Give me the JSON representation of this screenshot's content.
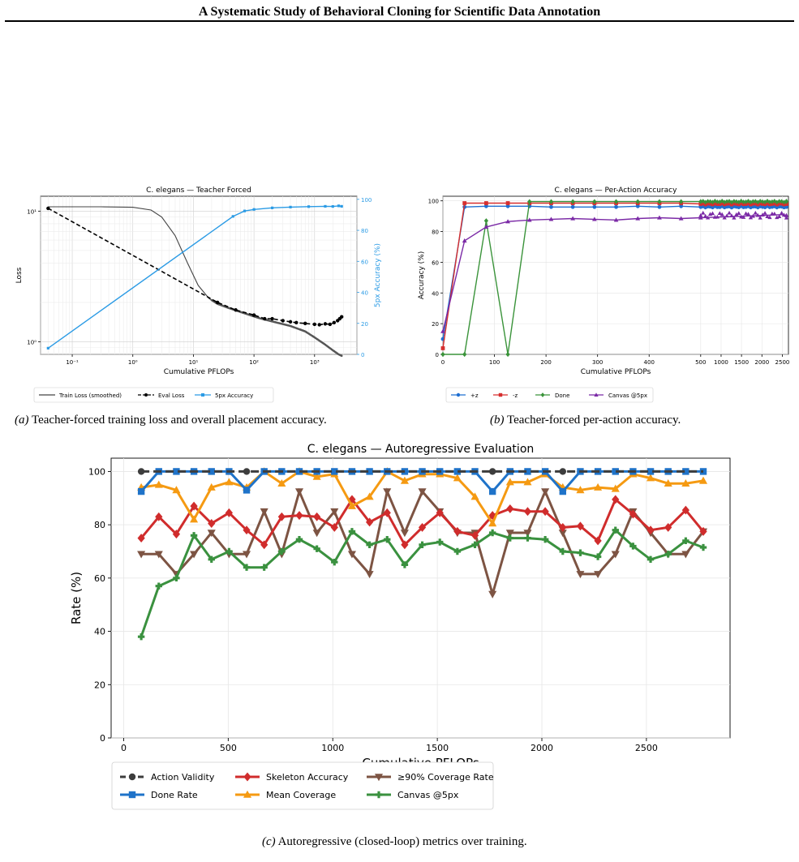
{
  "header": {
    "title": "A Systematic Study of Behavioral Cloning for Scientific Data Annotation"
  },
  "captions": {
    "a": {
      "label": "(a)",
      "text": " Teacher-forced training loss and overall placement accuracy."
    },
    "b": {
      "label": "(b)",
      "text": " Teacher-forced per-action accuracy."
    },
    "c": {
      "label": "(c)",
      "text": " Autoregressive (closed-loop) metrics over training."
    }
  },
  "chart_data": [
    {
      "id": "a",
      "type": "line",
      "title": "C. elegans — Teacher Forced",
      "xlabel": "Cumulative PFLOPs",
      "ylabel": "Loss",
      "ylabel_right": "5px Accuracy (%)",
      "xscale": "log",
      "yscale": "log",
      "xlim": [
        0.03,
        5000
      ],
      "ylim": [
        0.8,
        13
      ],
      "ylim_right": [
        0,
        102
      ],
      "grid": true,
      "legend": "bottom",
      "x_ticks": [
        "10⁻¹",
        "10⁰",
        "10¹",
        "10²",
        "10³"
      ],
      "y_ticks": [
        "10⁰",
        "10¹"
      ],
      "y_right_ticks": [
        "0",
        "20",
        "40",
        "60",
        "80",
        "100"
      ],
      "colors": {
        "train": "#444444",
        "eval": "#000000",
        "acc": "#2b9be5"
      },
      "series": [
        {
          "name": "Train Loss (smoothed)",
          "axis": "left",
          "x": [
            0.04,
            0.1,
            0.3,
            1,
            2,
            3,
            5,
            8,
            12,
            18,
            25,
            40,
            70,
            120,
            200,
            400,
            700,
            1000,
            1500,
            2000,
            2500,
            2800
          ],
          "y": [
            10.8,
            10.8,
            10.8,
            10.7,
            10.2,
            9.0,
            6.5,
            4.0,
            2.7,
            2.15,
            1.95,
            1.8,
            1.65,
            1.52,
            1.43,
            1.32,
            1.2,
            1.08,
            0.95,
            0.86,
            0.8,
            0.78
          ]
        },
        {
          "name": "Eval Loss",
          "axis": "left",
          "x": [
            0.04,
            25,
            50,
            100,
            150,
            200,
            300,
            400,
            500,
            700,
            1000,
            1200,
            1500,
            1800,
            2100,
            2400,
            2600,
            2800
          ],
          "y": [
            10.5,
            2.0,
            1.75,
            1.6,
            1.5,
            1.5,
            1.45,
            1.42,
            1.4,
            1.38,
            1.36,
            1.35,
            1.37,
            1.36,
            1.4,
            1.45,
            1.5,
            1.55
          ]
        },
        {
          "name": "5px Accuracy",
          "axis": "right",
          "x": [
            0.04,
            45,
            70,
            100,
            200,
            400,
            800,
            1500,
            2000,
            2500,
            2800
          ],
          "y": [
            4.0,
            89.0,
            92.5,
            93.5,
            94.5,
            95.0,
            95.3,
            95.5,
            95.4,
            95.8,
            95.5
          ]
        }
      ]
    },
    {
      "id": "b",
      "type": "line",
      "title": "C. elegans — Per-Action Accuracy",
      "xlabel": "Cumulative PFLOPs",
      "ylabel": "Accuracy (%)",
      "ylim": [
        0,
        103
      ],
      "grid": true,
      "legend": "bottom",
      "x_ticks": [
        "0",
        "100",
        "200",
        "300",
        "400",
        "500",
        "1000",
        "1500",
        "2000",
        "2500"
      ],
      "y_ticks": [
        "0",
        "20",
        "40",
        "60",
        "80",
        "100"
      ],
      "series": [
        {
          "name": "+z",
          "color": "#1f6fd1",
          "x": [
            0,
            42,
            84,
            126,
            168,
            210,
            252,
            294,
            336,
            378,
            420,
            462,
            500,
            1000,
            1500,
            2000,
            2500,
            2600
          ],
          "y": [
            10,
            96,
            96.5,
            96.5,
            96.5,
            96,
            96,
            96,
            96,
            96.5,
            96,
            96.5,
            96,
            96,
            96,
            96,
            96,
            96
          ]
        },
        {
          "name": "-z",
          "color": "#d62f2f",
          "x": [
            0,
            42,
            84,
            126,
            168,
            210,
            252,
            294,
            336,
            378,
            420,
            462,
            500,
            1000,
            1500,
            2000,
            2500,
            2600
          ],
          "y": [
            4,
            98.5,
            98.5,
            98.5,
            98.5,
            98.5,
            98.5,
            98.5,
            98.5,
            98.5,
            98.5,
            98.5,
            98,
            98,
            98,
            98,
            98,
            98
          ]
        },
        {
          "name": "Done",
          "color": "#3a933a",
          "x": [
            0,
            42,
            84,
            126,
            168,
            210,
            252,
            294,
            336,
            378,
            420,
            462,
            500,
            1000,
            1500,
            2000,
            2500,
            2600
          ],
          "y": [
            0,
            0,
            87,
            0,
            99.5,
            99.5,
            99.5,
            99.5,
            99.5,
            99.5,
            99.5,
            99.5,
            99.5,
            99.5,
            99.5,
            99.5,
            99.5,
            99.5
          ]
        },
        {
          "name": "Canvas @5px",
          "color": "#7b2aa6",
          "x": [
            0,
            42,
            84,
            126,
            168,
            210,
            252,
            294,
            336,
            378,
            420,
            462,
            500,
            1000,
            1500,
            2000,
            2500,
            2600
          ],
          "y": [
            15,
            74,
            83,
            86.5,
            87.5,
            88,
            88.5,
            88,
            87.5,
            88.5,
            89,
            88.5,
            89,
            89.5,
            90,
            90.5,
            91,
            90.5
          ]
        }
      ]
    },
    {
      "id": "c",
      "type": "line",
      "title": "C. elegans — Autoregressive Evaluation",
      "xlabel": "Cumulative PFLOPs",
      "ylabel": "Rate (%)",
      "xlim": [
        -60,
        2900
      ],
      "ylim": [
        0,
        105
      ],
      "grid": true,
      "legend": "bottom-left",
      "x_ticks": [
        0,
        500,
        1000,
        1500,
        2000,
        2500
      ],
      "y_ticks": [
        0,
        20,
        40,
        60,
        80,
        100
      ],
      "x": [
        84,
        168,
        252,
        336,
        420,
        504,
        588,
        672,
        756,
        840,
        924,
        1008,
        1092,
        1176,
        1260,
        1344,
        1428,
        1512,
        1596,
        1680,
        1764,
        1848,
        1932,
        2016,
        2100,
        2184,
        2268,
        2352,
        2436,
        2520,
        2604,
        2688,
        2772
      ],
      "series": [
        {
          "name": "Action Validity",
          "color": "#3d3d3d",
          "marker": "circle",
          "dashed": true,
          "values": [
            100,
            100,
            100,
            100,
            100,
            100,
            100,
            100,
            100,
            100,
            100,
            100,
            100,
            100,
            100,
            100,
            100,
            100,
            100,
            100,
            100,
            100,
            100,
            100,
            100,
            100,
            100,
            100,
            100,
            100,
            100,
            100,
            100
          ],
          "marker_at": [
            84,
            588,
            1764,
            2100
          ]
        },
        {
          "name": "Done Rate",
          "color": "#1f73c9",
          "marker": "square",
          "values": [
            92.5,
            100,
            100,
            100,
            100,
            100,
            93,
            100,
            100,
            100,
            100,
            100,
            100,
            100,
            100,
            100,
            100,
            100,
            100,
            100,
            92.5,
            100,
            100,
            100,
            92.5,
            100,
            100,
            100,
            100,
            100,
            100,
            100,
            100
          ]
        },
        {
          "name": "Skeleton Accuracy",
          "color": "#d02c2c",
          "marker": "diamond",
          "values": [
            75,
            83,
            76.5,
            87,
            80.5,
            84.5,
            78,
            72.5,
            83,
            83.5,
            83,
            79,
            89.5,
            81,
            84.5,
            72.5,
            79,
            84.5,
            77.5,
            76,
            83.5,
            86,
            85,
            85,
            79,
            79.5,
            74,
            89.5,
            84,
            78,
            79,
            85.5,
            77.5
          ]
        },
        {
          "name": "Mean Coverage",
          "color": "#f59a12",
          "marker": "triangle-up",
          "values": [
            94,
            95,
            93,
            82,
            94,
            96,
            94,
            100,
            95.5,
            100,
            98,
            99,
            87,
            90.5,
            100,
            96.5,
            99,
            99,
            97.5,
            90.5,
            80.5,
            96,
            96,
            99,
            94,
            93,
            94,
            93.5,
            99,
            97.5,
            95.5,
            95.5,
            96.5
          ]
        },
        {
          "name": "≥90% Coverage Rate",
          "color": "#7d5443",
          "marker": "triangle-down",
          "values": [
            69,
            69,
            61.5,
            69,
            77,
            69,
            69,
            85,
            69,
            92.5,
            77,
            85,
            69,
            61.5,
            92.5,
            77,
            92.5,
            85,
            77,
            77,
            54,
            77,
            77,
            92.5,
            77,
            61.5,
            61.5,
            69,
            85,
            77,
            69,
            69,
            77.5
          ]
        },
        {
          "name": "Canvas @5px",
          "color": "#3a913f",
          "marker": "plus",
          "values": [
            38,
            57,
            60,
            76,
            67,
            70,
            64,
            64,
            70,
            74.5,
            71,
            66,
            77.5,
            72.5,
            74.5,
            65,
            72.5,
            73.5,
            70,
            72.5,
            77,
            75,
            75,
            74.5,
            70,
            69.5,
            68,
            78,
            72,
            67,
            69,
            74,
            71.5
          ]
        }
      ]
    }
  ]
}
